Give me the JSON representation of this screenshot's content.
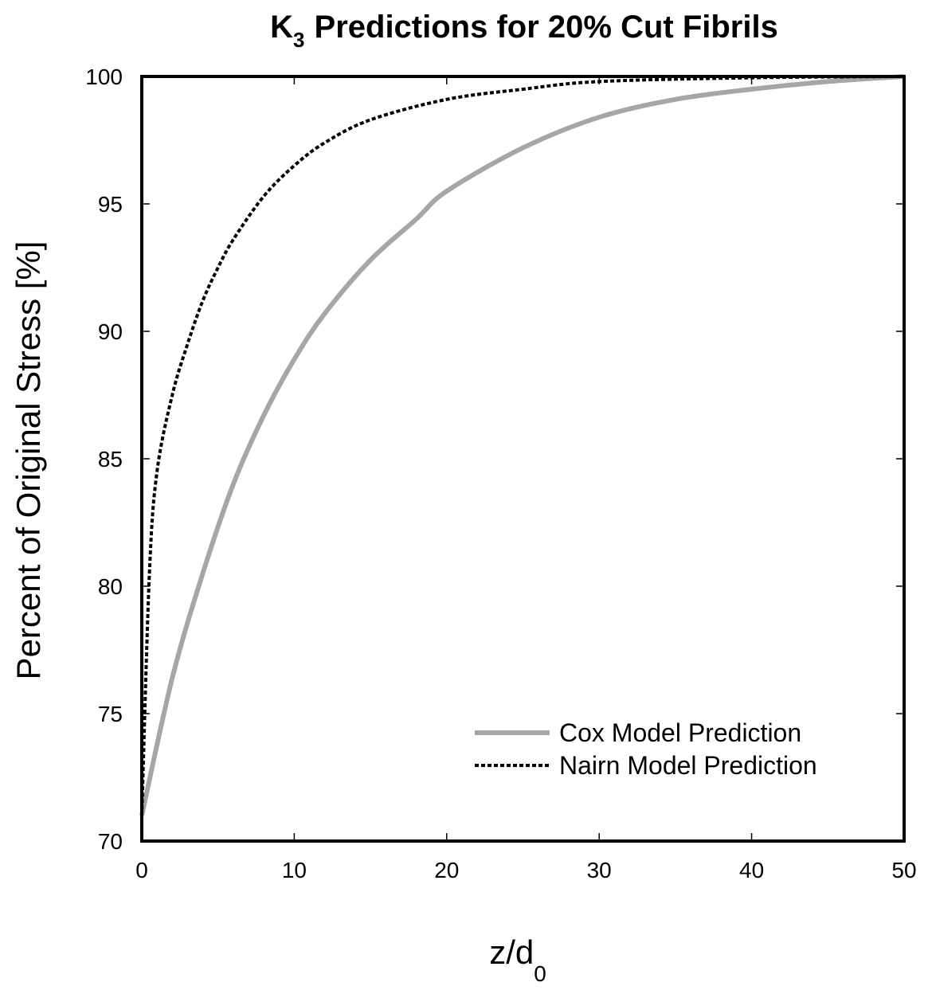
{
  "chart_data": {
    "type": "line",
    "title": {
      "prefix": "K",
      "subscript": "3",
      "rest": "Predictions for 20% Cut Fibrils"
    },
    "xlabel": {
      "main": "z/d",
      "subscript": "0"
    },
    "ylabel": "Percent of Original Stress [%]",
    "xlim": [
      0,
      50
    ],
    "ylim": [
      70,
      100
    ],
    "xticks": [
      "0",
      "10",
      "20",
      "30",
      "40",
      "50"
    ],
    "yticks": [
      "70",
      "75",
      "80",
      "85",
      "90",
      "95",
      "100"
    ],
    "grid": false,
    "legend_position": "bottom-right",
    "series": [
      {
        "name": "Cox Model Prediction",
        "color": "#a6a6a6",
        "style": "solid",
        "x": [
          0,
          2,
          4,
          6,
          8,
          10,
          12,
          15,
          18,
          20,
          25,
          30,
          35,
          40,
          45,
          50
        ],
        "y": [
          71.0,
          76.4,
          80.5,
          84.0,
          86.7,
          88.9,
          90.7,
          92.8,
          94.4,
          95.5,
          97.2,
          98.4,
          99.1,
          99.5,
          99.8,
          100.0
        ]
      },
      {
        "name": "Nairn Model Prediction",
        "color": "#000000",
        "style": "dashed",
        "x": [
          0,
          0.5,
          1,
          2,
          3,
          4,
          5,
          6,
          8,
          10,
          12,
          15,
          20,
          25,
          30,
          40,
          50
        ],
        "y": [
          71.0,
          80.5,
          84.5,
          87.5,
          89.5,
          91.2,
          92.5,
          93.6,
          95.3,
          96.5,
          97.4,
          98.3,
          99.1,
          99.5,
          99.8,
          99.95,
          100.0
        ]
      }
    ]
  }
}
